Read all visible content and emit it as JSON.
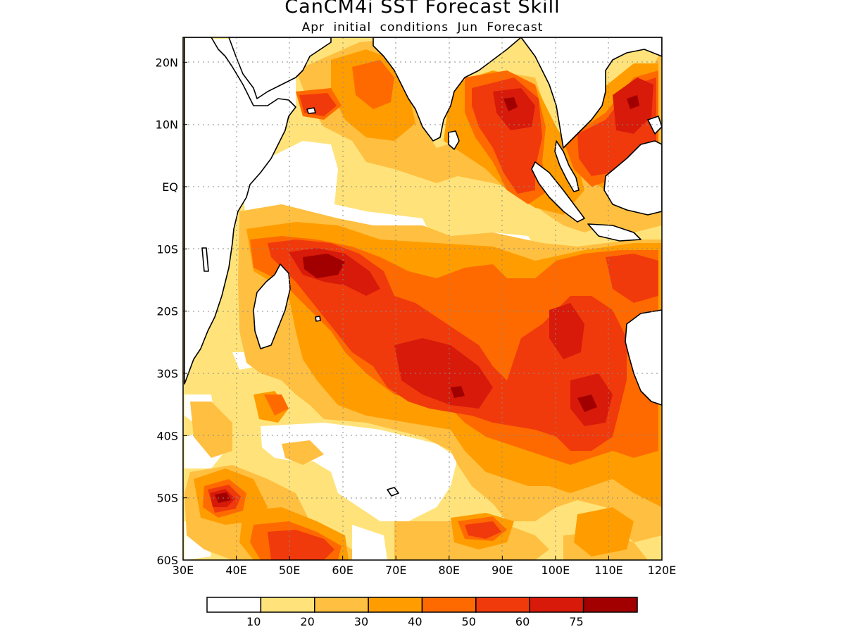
{
  "header": {
    "title": "CanCM4i SST Forecast Skill",
    "subtitle": "Apr initial conditions  Jun Forecast"
  },
  "map": {
    "lon_range": [
      30,
      120
    ],
    "lat_range": [
      -60,
      24
    ],
    "x_ticks": [
      "30E",
      "40E",
      "50E",
      "60E",
      "70E",
      "80E",
      "90E",
      "100E",
      "110E",
      "120E"
    ],
    "y_ticks": [
      {
        "lat": 20,
        "label": "20N"
      },
      {
        "lat": 10,
        "label": "10N"
      },
      {
        "lat": 0,
        "label": "EQ"
      },
      {
        "lat": -10,
        "label": "10S"
      },
      {
        "lat": -20,
        "label": "20S"
      },
      {
        "lat": -30,
        "label": "30S"
      },
      {
        "lat": -40,
        "label": "40S"
      },
      {
        "lat": -50,
        "label": "50S"
      },
      {
        "lat": -60,
        "label": "60S"
      }
    ],
    "grid": true
  },
  "colorbar": {
    "colors": [
      "#ffffff",
      "#ffe37a",
      "#ffbf40",
      "#ff9d00",
      "#ff6a00",
      "#f03a0c",
      "#d71a0a",
      "#a20000"
    ],
    "labels": [
      "10",
      "20",
      "30",
      "40",
      "50",
      "60",
      "75"
    ]
  }
}
